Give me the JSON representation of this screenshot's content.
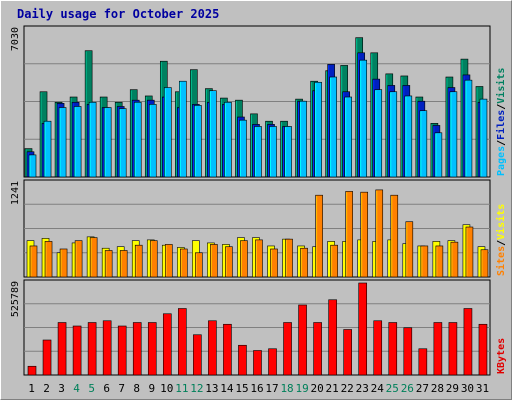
{
  "title": "Daily usage for October 2025",
  "chart_data": {
    "type": "bar",
    "categories": [
      "1",
      "2",
      "3",
      "4",
      "5",
      "6",
      "7",
      "8",
      "9",
      "10",
      "11",
      "12",
      "13",
      "14",
      "15",
      "16",
      "17",
      "18",
      "19",
      "20",
      "21",
      "22",
      "23",
      "24",
      "25",
      "26",
      "27",
      "28",
      "29",
      "30",
      "31"
    ],
    "weekend_days": [
      "4",
      "5",
      "11",
      "12",
      "18",
      "19",
      "25",
      "26"
    ],
    "panels": [
      {
        "id": "pages-files-visits",
        "max_label": "7030",
        "ylim": [
          0,
          7030
        ],
        "legend": [
          {
            "label": "Pages",
            "color": "#00c0ff"
          },
          {
            "label": "/",
            "color": "#000000"
          },
          {
            "label": "Files",
            "color": "#0020c0"
          },
          {
            "label": "/",
            "color": "#000000"
          },
          {
            "label": "Visits",
            "color": "#008060"
          }
        ],
        "series": [
          {
            "name": "Visits",
            "color": "#008060",
            "values": [
              1350,
              4050,
              3550,
              3800,
              6000,
              3800,
              3550,
              4150,
              3850,
              5500,
              4050,
              5100,
              4200,
              3750,
              3650,
              3000,
              2650,
              2650,
              3700,
              4550,
              5050,
              5300,
              6620,
              5900,
              4900,
              4800,
              3800,
              2550,
              4750,
              5600,
              4300
            ]
          },
          {
            "name": "Files",
            "color": "#0020c0",
            "values": [
              1200,
              2550,
              3500,
              3550,
              3450,
              3300,
              3350,
              3650,
              3650,
              3800,
              3300,
              3450,
              3550,
              3450,
              2850,
              2500,
              2500,
              2400,
              3600,
              4100,
              5350,
              4050,
              5900,
              4650,
              4350,
              4350,
              3600,
              2450,
              4250,
              4850,
              3550
            ]
          },
          {
            "name": "Pages",
            "color": "#00c0ff",
            "values": [
              1050,
              2650,
              3300,
              3350,
              3550,
              3300,
              3250,
              3550,
              3450,
              4250,
              4550,
              3400,
              4100,
              3550,
              2700,
              2400,
              2400,
              2400,
              3600,
              4500,
              4750,
              3800,
              5550,
              4150,
              4050,
              3850,
              3150,
              2100,
              4050,
              4600,
              3700
            ]
          }
        ]
      },
      {
        "id": "sites-visits",
        "max_label": "1241",
        "ylim": [
          0,
          1241
        ],
        "legend": [
          {
            "label": "Sites",
            "color": "#ff8000"
          },
          {
            "label": "/",
            "color": "#000000"
          },
          {
            "label": "Visits",
            "color": "#ffff00"
          }
        ],
        "series": [
          {
            "name": "Visits",
            "color": "#ffff00",
            "values": [
              480,
              510,
              320,
              450,
              530,
              380,
              400,
              480,
              490,
              420,
              390,
              480,
              450,
              430,
              520,
              520,
              410,
              500,
              410,
              400,
              470,
              470,
              490,
              470,
              490,
              440,
              410,
              470,
              480,
              690,
              400
            ]
          },
          {
            "name": "Sites",
            "color": "#ff8000",
            "values": [
              410,
              470,
              370,
              480,
              520,
              350,
              350,
              420,
              480,
              430,
              370,
              320,
              430,
              400,
              480,
              490,
              370,
              500,
              380,
              1080,
              420,
              1130,
              1120,
              1150,
              1080,
              730,
              410,
              410,
              460,
              660,
              360
            ]
          }
        ]
      },
      {
        "id": "kbytes",
        "max_label": "525789",
        "ylim": [
          0,
          525789
        ],
        "legend": [
          {
            "label": "KBytes",
            "color": "#e00000"
          }
        ],
        "series": [
          {
            "name": "KBytes",
            "color": "#ff0000",
            "values": [
              50000,
              200000,
              300000,
              280000,
              300000,
              310000,
              280000,
              300000,
              300000,
              350000,
              380000,
              230000,
              310000,
              290000,
              170000,
              140000,
              150000,
              300000,
              400000,
              300000,
              430000,
              260000,
              525789,
              310000,
              300000,
              270000,
              150000,
              300000,
              300000,
              380000,
              290000
            ]
          }
        ]
      }
    ]
  }
}
